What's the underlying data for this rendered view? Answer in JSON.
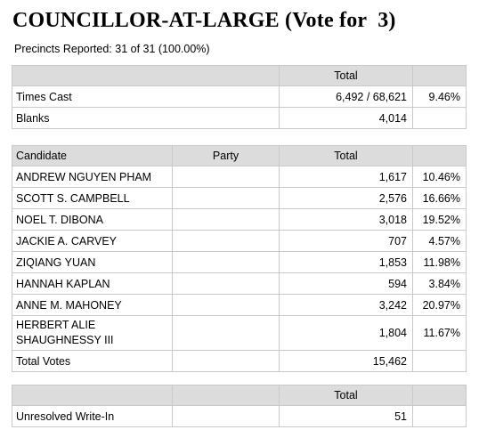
{
  "contest": {
    "title": "COUNCILLOR-AT-LARGE (Vote for  3)",
    "precincts": "Precincts Reported: 31 of 31 (100.00%)"
  },
  "summary": {
    "total_header": "Total",
    "times_cast_label": "Times Cast",
    "times_cast_value": "6,492 / 68,621",
    "times_cast_pct": "9.46%",
    "blanks_label": "Blanks",
    "blanks_value": "4,014"
  },
  "results": {
    "headers": {
      "candidate": "Candidate",
      "party": "Party",
      "total": "Total"
    },
    "candidates": [
      {
        "name": "ANDREW NGUYEN PHAM",
        "party": "",
        "votes": "1,617",
        "pct": "10.46%"
      },
      {
        "name": "SCOTT S. CAMPBELL",
        "party": "",
        "votes": "2,576",
        "pct": "16.66%"
      },
      {
        "name": "NOEL T. DIBONA",
        "party": "",
        "votes": "3,018",
        "pct": "19.52%"
      },
      {
        "name": "JACKIE A. CARVEY",
        "party": "",
        "votes": "707",
        "pct": "4.57%"
      },
      {
        "name": "ZIQIANG YUAN",
        "party": "",
        "votes": "1,853",
        "pct": "11.98%"
      },
      {
        "name": "HANNAH KAPLAN",
        "party": "",
        "votes": "594",
        "pct": "3.84%"
      },
      {
        "name": "ANNE M. MAHONEY",
        "party": "",
        "votes": "3,242",
        "pct": "20.97%"
      },
      {
        "name": "HERBERT ALIE SHAUGHNESSY III",
        "party": "",
        "votes": "1,804",
        "pct": "11.67%"
      }
    ],
    "total_votes_label": "Total Votes",
    "total_votes_value": "15,462"
  },
  "writein": {
    "total_header": "Total",
    "label": "Unresolved Write-In",
    "value": "51"
  },
  "colors": {
    "header_bg": "#dcdcdc",
    "border": "#c9c9c9"
  }
}
